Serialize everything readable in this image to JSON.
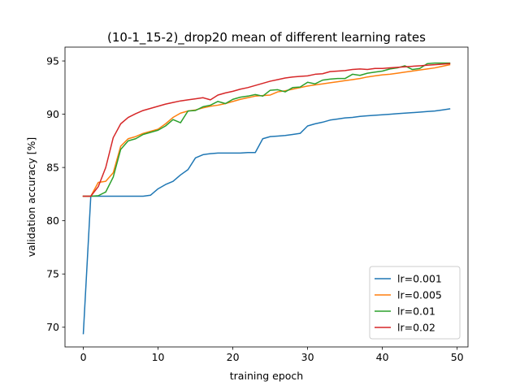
{
  "chart_data": {
    "type": "line",
    "title": "(10-1_15-2)_drop20    mean of different learning rates",
    "xlabel": "training epoch",
    "ylabel": "validation accuracy [%]",
    "xlim": [
      -2.45,
      51.45
    ],
    "ylim": [
      68.15,
      96.3
    ],
    "xticks": [
      0,
      10,
      20,
      30,
      40,
      50
    ],
    "yticks": [
      70,
      75,
      80,
      85,
      90,
      95
    ],
    "grid": false,
    "legend_position": "lower right",
    "x": [
      0,
      1,
      2,
      3,
      4,
      5,
      6,
      7,
      8,
      9,
      10,
      11,
      12,
      13,
      14,
      15,
      16,
      17,
      18,
      19,
      20,
      21,
      22,
      23,
      24,
      25,
      26,
      27,
      28,
      29,
      30,
      31,
      32,
      33,
      34,
      35,
      36,
      37,
      38,
      39,
      40,
      41,
      42,
      43,
      44,
      45,
      46,
      47,
      48,
      49
    ],
    "series": [
      {
        "name": "lr=0.001",
        "color": "#1f77b4",
        "values": [
          69.4,
          82.3,
          82.3,
          82.3,
          82.3,
          82.3,
          82.3,
          82.3,
          82.3,
          82.4,
          83.0,
          83.4,
          83.7,
          84.3,
          84.8,
          85.9,
          86.2,
          86.3,
          86.35,
          86.35,
          86.35,
          86.35,
          86.4,
          86.4,
          87.7,
          87.9,
          87.95,
          88.0,
          88.1,
          88.2,
          88.9,
          89.1,
          89.25,
          89.45,
          89.55,
          89.65,
          89.7,
          89.8,
          89.85,
          89.9,
          89.95,
          90.0,
          90.05,
          90.1,
          90.15,
          90.2,
          90.25,
          90.3,
          90.4,
          90.5
        ]
      },
      {
        "name": "lr=0.005",
        "color": "#ff7f0e",
        "values": [
          82.3,
          82.3,
          83.6,
          83.7,
          84.5,
          87.0,
          87.7,
          87.9,
          88.2,
          88.4,
          88.6,
          89.1,
          89.7,
          90.1,
          90.3,
          90.4,
          90.6,
          90.75,
          90.85,
          91.0,
          91.2,
          91.4,
          91.55,
          91.7,
          91.75,
          91.8,
          92.1,
          92.2,
          92.35,
          92.5,
          92.65,
          92.75,
          92.85,
          92.95,
          93.05,
          93.15,
          93.25,
          93.35,
          93.5,
          93.6,
          93.7,
          93.75,
          93.85,
          93.95,
          94.05,
          94.15,
          94.25,
          94.35,
          94.5,
          94.65
        ]
      },
      {
        "name": "lr=0.01",
        "color": "#2ca02c",
        "values": [
          82.3,
          82.3,
          82.35,
          82.7,
          84.1,
          86.7,
          87.5,
          87.7,
          88.1,
          88.3,
          88.5,
          88.9,
          89.5,
          89.2,
          90.3,
          90.35,
          90.7,
          90.85,
          91.2,
          91.0,
          91.4,
          91.6,
          91.7,
          91.85,
          91.7,
          92.25,
          92.3,
          92.1,
          92.5,
          92.55,
          93.0,
          92.85,
          93.2,
          93.3,
          93.35,
          93.35,
          93.75,
          93.65,
          93.85,
          93.95,
          94.05,
          94.25,
          94.35,
          94.55,
          94.2,
          94.3,
          94.75,
          94.8,
          94.8,
          94.8
        ]
      },
      {
        "name": "lr=0.02",
        "color": "#d62728",
        "values": [
          82.3,
          82.3,
          83.2,
          85.0,
          87.8,
          89.1,
          89.7,
          90.05,
          90.35,
          90.55,
          90.75,
          90.95,
          91.1,
          91.25,
          91.35,
          91.45,
          91.55,
          91.35,
          91.8,
          92.0,
          92.15,
          92.35,
          92.5,
          92.7,
          92.9,
          93.1,
          93.25,
          93.4,
          93.5,
          93.55,
          93.6,
          93.75,
          93.8,
          94.0,
          94.05,
          94.1,
          94.2,
          94.25,
          94.2,
          94.3,
          94.3,
          94.35,
          94.4,
          94.45,
          94.5,
          94.55,
          94.6,
          94.65,
          94.7,
          94.75
        ]
      }
    ]
  }
}
